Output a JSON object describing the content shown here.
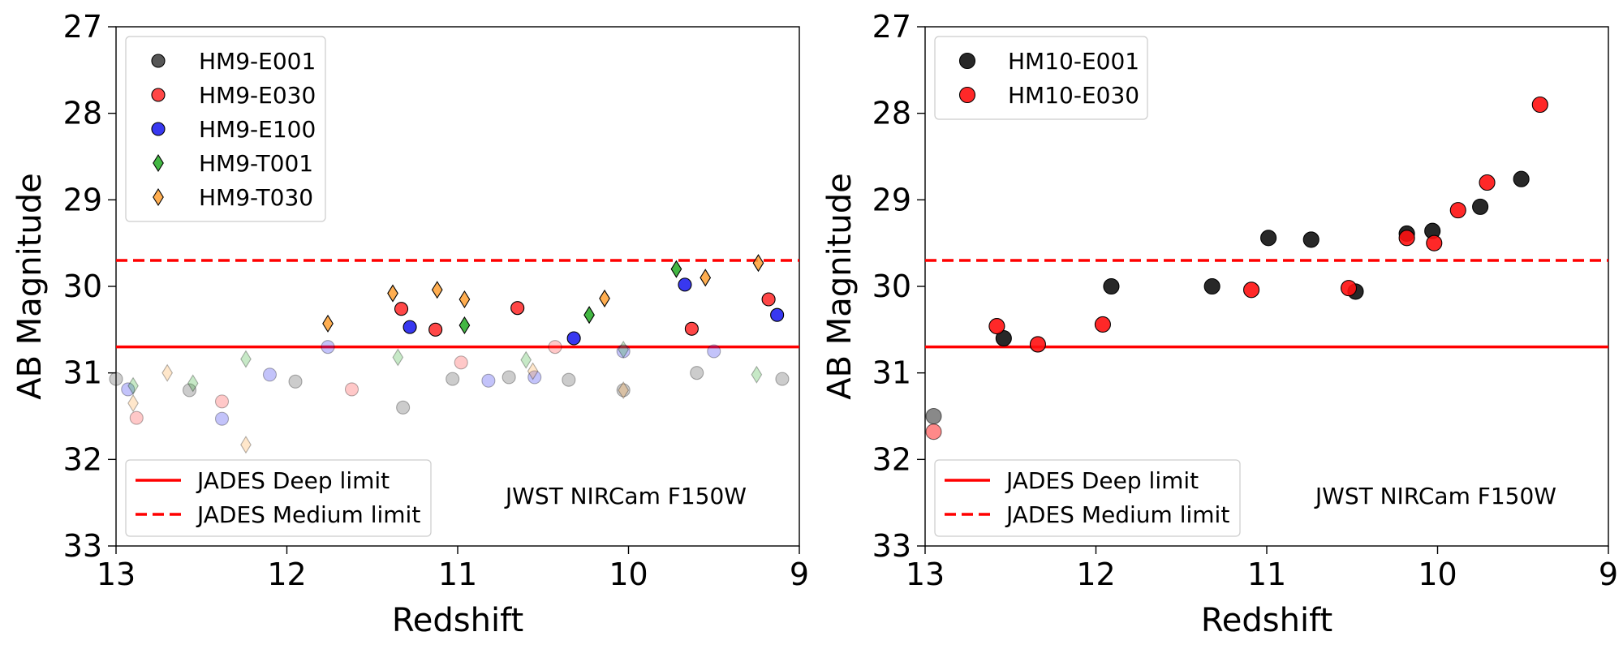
{
  "chart_data": [
    {
      "type": "scatter",
      "xlabel": "Redshift",
      "ylabel": "AB Magnitude",
      "xlim": [
        13,
        9
      ],
      "ylim": [
        33,
        27
      ],
      "xticks": [
        "13",
        "12",
        "11",
        "10",
        "9"
      ],
      "yticks": [
        "27",
        "28",
        "29",
        "30",
        "31",
        "32",
        "33"
      ],
      "annotation": "JWST NIRCam F150W",
      "legend_location": "upper-left",
      "reference_lines": [
        {
          "label": "JADES Deep limit",
          "y": 30.7,
          "style": "solid",
          "color": "#ff0000"
        },
        {
          "label": "JADES Medium limit",
          "y": 29.7,
          "style": "dashed",
          "color": "#ff0000"
        }
      ],
      "series": [
        {
          "name": "HM9-E001",
          "marker": "circle",
          "color": "#444444",
          "points": [
            [
              13.0,
              31.07,
              0.3
            ],
            [
              12.57,
              31.2,
              0.3
            ],
            [
              11.95,
              31.1,
              0.3
            ],
            [
              11.32,
              31.4,
              0.3
            ],
            [
              11.03,
              31.07,
              0.3
            ],
            [
              10.7,
              31.05,
              0.3
            ],
            [
              10.35,
              31.08,
              0.3
            ],
            [
              10.03,
              31.2,
              0.3
            ],
            [
              9.6,
              31.0,
              0.3
            ],
            [
              9.1,
              31.07,
              0.3
            ]
          ]
        },
        {
          "name": "HM9-E030",
          "marker": "circle",
          "color": "#ff3333",
          "points": [
            [
              12.88,
              31.52,
              0.3
            ],
            [
              12.38,
              31.33,
              0.3
            ],
            [
              11.62,
              31.19,
              0.3
            ],
            [
              10.98,
              30.88,
              0.3
            ],
            [
              10.43,
              30.7,
              0.3
            ],
            [
              11.33,
              30.26,
              1.0
            ],
            [
              11.13,
              30.5,
              1.0
            ],
            [
              10.65,
              30.25,
              1.0
            ],
            [
              9.63,
              30.49,
              1.0
            ],
            [
              9.18,
              30.15,
              1.0
            ]
          ]
        },
        {
          "name": "HM9-E100",
          "marker": "circle",
          "color": "#2222ee",
          "points": [
            [
              12.93,
              31.19,
              0.3
            ],
            [
              12.38,
              31.53,
              0.3
            ],
            [
              12.1,
              31.02,
              0.3
            ],
            [
              11.76,
              30.7,
              0.3
            ],
            [
              10.82,
              31.09,
              0.3
            ],
            [
              10.55,
              31.05,
              0.3
            ],
            [
              10.03,
              30.75,
              0.3
            ],
            [
              9.5,
              30.75,
              0.3
            ],
            [
              11.28,
              30.47,
              1.0
            ],
            [
              10.32,
              30.6,
              1.0
            ],
            [
              9.67,
              29.98,
              1.0
            ],
            [
              9.13,
              30.33,
              1.0
            ]
          ]
        },
        {
          "name": "HM9-T001",
          "marker": "diamond",
          "color": "#22aa22",
          "points": [
            [
              12.9,
              31.15,
              0.3
            ],
            [
              12.55,
              31.12,
              0.3
            ],
            [
              12.24,
              30.84,
              0.3
            ],
            [
              11.35,
              30.82,
              0.3
            ],
            [
              10.6,
              30.85,
              0.3
            ],
            [
              10.03,
              30.73,
              0.3
            ],
            [
              9.25,
              31.02,
              0.3
            ],
            [
              10.96,
              30.45,
              1.0
            ],
            [
              10.23,
              30.33,
              1.0
            ],
            [
              9.72,
              29.8,
              1.0
            ]
          ]
        },
        {
          "name": "HM9-T030",
          "marker": "diamond",
          "color": "#ffa033",
          "points": [
            [
              12.9,
              31.35,
              0.3
            ],
            [
              12.7,
              31.0,
              0.3
            ],
            [
              12.24,
              31.83,
              0.3
            ],
            [
              10.56,
              30.98,
              0.3
            ],
            [
              10.03,
              31.2,
              0.3
            ],
            [
              11.76,
              30.43,
              1.0
            ],
            [
              11.38,
              30.08,
              1.0
            ],
            [
              11.12,
              30.04,
              1.0
            ],
            [
              10.96,
              30.15,
              1.0
            ],
            [
              10.14,
              30.14,
              1.0
            ],
            [
              9.55,
              29.9,
              1.0
            ],
            [
              9.24,
              29.73,
              1.0
            ]
          ]
        }
      ]
    },
    {
      "type": "scatter",
      "xlabel": "Redshift",
      "ylabel": "AB Magnitude",
      "xlim": [
        13,
        9
      ],
      "ylim": [
        33,
        27
      ],
      "xticks": [
        "13",
        "12",
        "11",
        "10",
        "9"
      ],
      "yticks": [
        "27",
        "28",
        "29",
        "30",
        "31",
        "32",
        "33"
      ],
      "annotation": "JWST NIRCam F150W",
      "legend_location": "upper-left",
      "reference_lines": [
        {
          "label": "JADES Deep limit",
          "y": 30.7,
          "style": "solid",
          "color": "#ff0000"
        },
        {
          "label": "JADES Medium limit",
          "y": 29.7,
          "style": "dashed",
          "color": "#ff0000"
        }
      ],
      "series": [
        {
          "name": "HM10-E001",
          "marker": "circle",
          "color": "#111111",
          "points": [
            [
              12.95,
              31.5,
              0.55
            ],
            [
              12.54,
              30.6,
              1.0
            ],
            [
              11.91,
              30.0,
              1.0
            ],
            [
              11.32,
              30.0,
              1.0
            ],
            [
              10.99,
              29.44,
              1.0
            ],
            [
              10.74,
              29.46,
              1.0
            ],
            [
              10.48,
              30.06,
              1.0
            ],
            [
              10.18,
              29.39,
              1.0
            ],
            [
              10.03,
              29.36,
              1.0
            ],
            [
              9.75,
              29.08,
              1.0
            ],
            [
              9.51,
              28.76,
              1.0
            ]
          ]
        },
        {
          "name": "HM10-E030",
          "marker": "circle",
          "color": "#ff1111",
          "points": [
            [
              12.95,
              31.68,
              0.55
            ],
            [
              12.58,
              30.46,
              1.0
            ],
            [
              12.34,
              30.67,
              1.0
            ],
            [
              11.96,
              30.44,
              1.0
            ],
            [
              11.09,
              30.04,
              1.0
            ],
            [
              10.52,
              30.02,
              1.0
            ],
            [
              10.18,
              29.44,
              1.0
            ],
            [
              10.02,
              29.5,
              1.0
            ],
            [
              9.88,
              29.12,
              1.0
            ],
            [
              9.71,
              28.8,
              1.0
            ],
            [
              9.4,
              27.9,
              1.0
            ]
          ]
        }
      ]
    }
  ]
}
